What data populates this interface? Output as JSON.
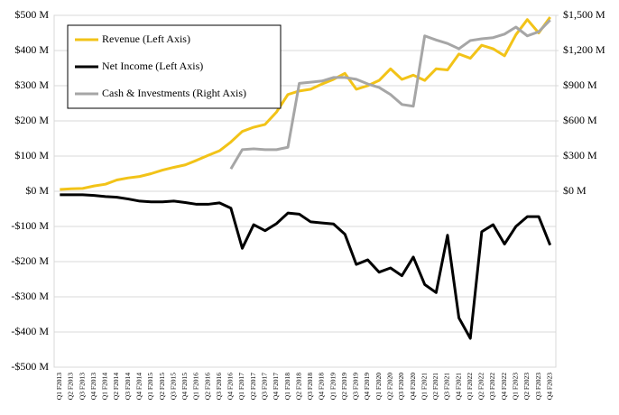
{
  "chart_data": {
    "type": "line",
    "categories": [
      "Q1 F2013",
      "Q2 F2013",
      "Q3 F2013",
      "Q4 F2013",
      "Q1 F2014",
      "Q2 F2014",
      "Q3 F2014",
      "Q4 F2014",
      "Q1 F2015",
      "Q2 F2015",
      "Q3 F2015",
      "Q4 F2015",
      "Q1 F2016",
      "Q2 F2016",
      "Q3 F2016",
      "Q4 F2016",
      "Q1 F2017",
      "Q2 F2017",
      "Q3 F2017",
      "Q4 F2017",
      "Q1 F2018",
      "Q2 F2018",
      "Q3 F2018",
      "Q4 F2018",
      "Q1 F2019",
      "Q2 F2019",
      "Q3 F2019",
      "Q4 F2019",
      "Q1 F2020",
      "Q2 F2020",
      "Q3 F2020",
      "Q4 F2020",
      "Q1 F2021",
      "Q2 F2021",
      "Q3 F2021",
      "Q4 F2021",
      "Q1 F2022",
      "Q2 F2022",
      "Q3 F2022",
      "Q4 F2022",
      "Q1 F2023",
      "Q2 F2023",
      "Q3 F2023",
      "Q4 F2023"
    ],
    "series": [
      {
        "name": "Revenue (Left Axis)",
        "color": "#f2c318",
        "axis": "y",
        "values": [
          5,
          7,
          8,
          15,
          20,
          32,
          38,
          42,
          50,
          60,
          68,
          75,
          88,
          102,
          115,
          140,
          170,
          182,
          190,
          225,
          275,
          285,
          290,
          305,
          318,
          335,
          290,
          300,
          315,
          348,
          318,
          330,
          315,
          348,
          345,
          390,
          378,
          415,
          405,
          385,
          445,
          488,
          450,
          495
        ]
      },
      {
        "name": "Net Income (Left Axis)",
        "color": "#000000",
        "axis": "y",
        "values": [
          -10,
          -10,
          -10,
          -12,
          -15,
          -17,
          -22,
          -28,
          -30,
          -30,
          -28,
          -32,
          -37,
          -37,
          -33,
          -48,
          -162,
          -95,
          -112,
          -92,
          -62,
          -65,
          -87,
          -90,
          -93,
          -122,
          -208,
          -195,
          -230,
          -218,
          -240,
          -187,
          -265,
          -288,
          -125,
          -360,
          -418,
          -115,
          -95,
          -150,
          -100,
          -72,
          -72,
          -153
        ]
      },
      {
        "name": "Cash & Investments (Right Axis)",
        "color": "#a6a6a6",
        "axis": "y2",
        "values": [
          null,
          null,
          null,
          null,
          null,
          null,
          null,
          null,
          null,
          null,
          null,
          null,
          null,
          null,
          null,
          190,
          355,
          362,
          355,
          355,
          375,
          920,
          930,
          940,
          970,
          970,
          955,
          915,
          885,
          825,
          740,
          725,
          1325,
          1290,
          1260,
          1215,
          1285,
          1300,
          1310,
          1340,
          1400,
          1325,
          1360,
          1460
        ]
      }
    ],
    "ylim": [
      -500,
      500
    ],
    "yticks": [
      {
        "value": -500,
        "label": "-$500 M"
      },
      {
        "value": -400,
        "label": "-$400 M"
      },
      {
        "value": -300,
        "label": "-$300 M"
      },
      {
        "value": -200,
        "label": "-$200 M"
      },
      {
        "value": -100,
        "label": "-$100 M"
      },
      {
        "value": 0,
        "label": "$0 M"
      },
      {
        "value": 100,
        "label": "$100 M"
      },
      {
        "value": 200,
        "label": "$200 M"
      },
      {
        "value": 300,
        "label": "$300 M"
      },
      {
        "value": 400,
        "label": "$400 M"
      },
      {
        "value": 500,
        "label": "$500 M"
      }
    ],
    "y2lim": [
      -1500,
      1500
    ],
    "y2ticks": [
      {
        "value": 0,
        "label": "$0 M"
      },
      {
        "value": 300,
        "label": "$300 M"
      },
      {
        "value": 600,
        "label": "$600 M"
      },
      {
        "value": 900,
        "label": "$900 M"
      },
      {
        "value": 1200,
        "label": "$1,200 M"
      },
      {
        "value": 1500,
        "label": "$1,500 M"
      }
    ],
    "grid": true,
    "legend": "upper left"
  }
}
